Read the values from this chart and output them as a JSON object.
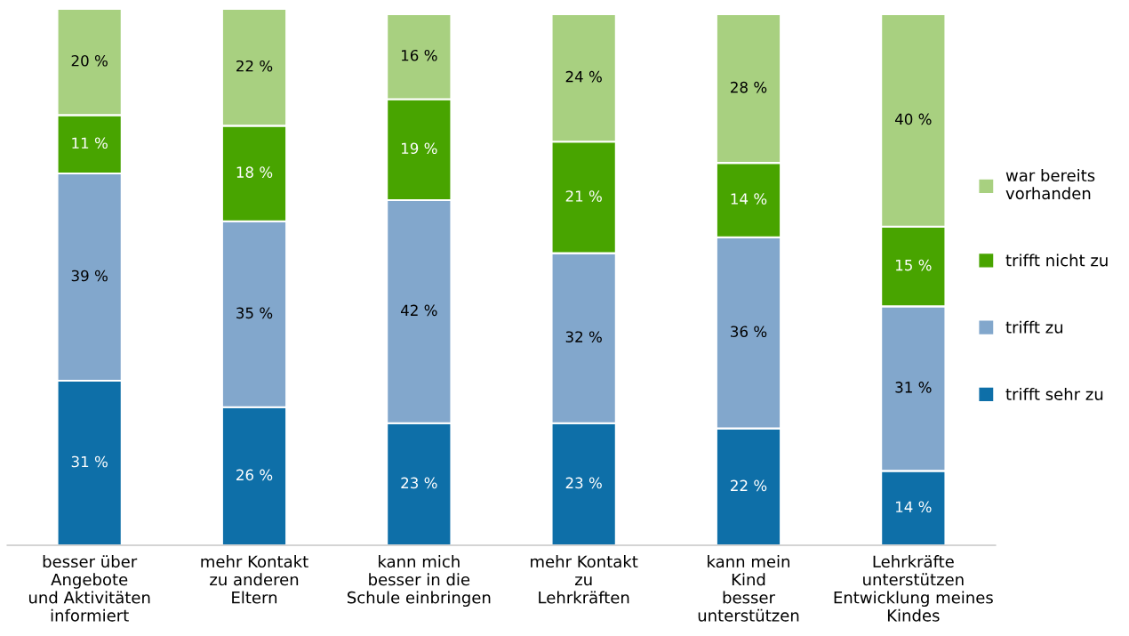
{
  "chart_data": {
    "type": "bar",
    "stacked": true,
    "legend": "right",
    "grid": false,
    "categories": [
      "besser über\nAngebote\nund Aktivitäten\ninformiert",
      "mehr Kontakt\nzu anderen\nEltern",
      "kann mich\nbesser in die\nSchule einbringen",
      "mehr Kontakt\nzu\nLehrkräften",
      "kann mein\nKind\nbesser\nunterstützen",
      "Lehrkräfte\nunterstützen\nEntwicklung meines\nKindes"
    ],
    "series": [
      {
        "name": "trifft sehr zu",
        "color": "#0e6fa8",
        "values": [
          31,
          26,
          23,
          23,
          22,
          14
        ],
        "value_labels": [
          "31 %",
          "26 %",
          "23 %",
          "23 %",
          "22 %",
          "14 %"
        ]
      },
      {
        "name": "trifft zu",
        "color": "#82a7cc",
        "values": [
          39,
          35,
          42,
          32,
          36,
          31
        ],
        "value_labels": [
          "39 %",
          "35 %",
          "42 %",
          "32 %",
          "36 %",
          "31 %"
        ]
      },
      {
        "name": "trifft nicht zu",
        "color": "#48a400",
        "values": [
          11,
          18,
          19,
          21,
          14,
          15
        ],
        "value_labels": [
          "11 %",
          "18 %",
          "19 %",
          "21 %",
          "14 %",
          "15 %"
        ]
      },
      {
        "name": "war bereits\nvorhanden",
        "color": "#a8d080",
        "values": [
          20,
          22,
          16,
          24,
          28,
          40
        ],
        "value_labels": [
          "20 %",
          "22 %",
          "16 %",
          "24 %",
          "28 %",
          "40 %"
        ]
      }
    ]
  }
}
